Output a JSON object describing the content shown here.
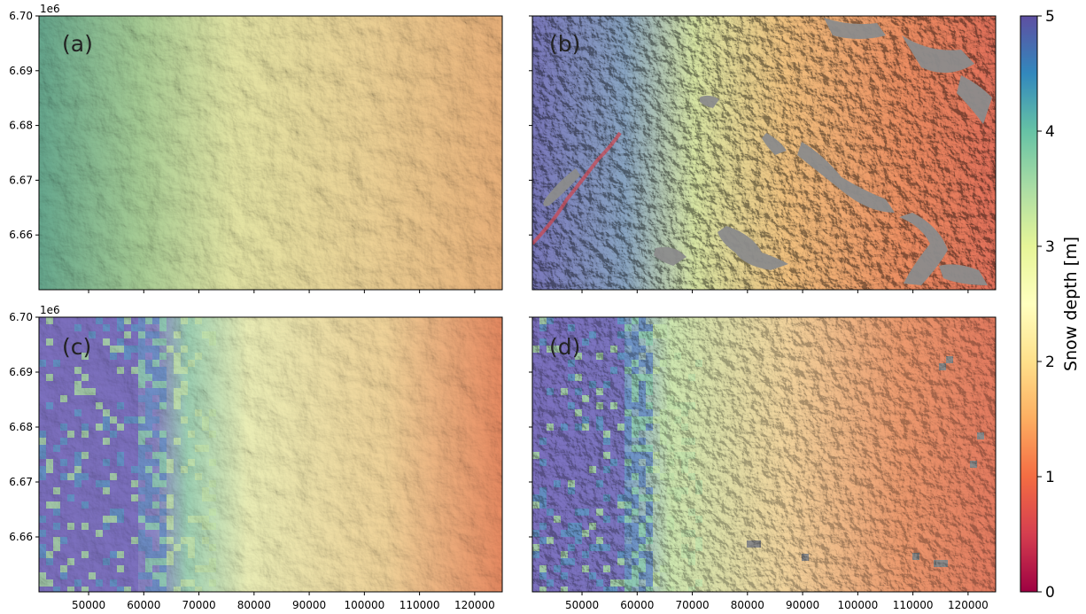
{
  "figure": {
    "panels": [
      {
        "id": "a",
        "label": "(a)",
        "field": "smooth"
      },
      {
        "id": "b",
        "label": "(b)",
        "field": "fine"
      },
      {
        "id": "c",
        "label": "(c)",
        "field": "coarse-grid"
      },
      {
        "id": "d",
        "label": "(d)",
        "field": "fine-grid"
      }
    ],
    "x_ticks": [
      "50000",
      "60000",
      "70000",
      "80000",
      "90000",
      "100000",
      "110000",
      "120000"
    ],
    "y_ticks": [
      "6.66",
      "6.67",
      "6.68",
      "6.69",
      "6.70"
    ],
    "y_offset_label": "1e6",
    "colorbar": {
      "label": "Snow depth [m]",
      "ticks": [
        "0",
        "1",
        "2",
        "3",
        "4",
        "5"
      ],
      "colormap": "Spectral",
      "min": 0,
      "max": 5,
      "colors": [
        "#9e0142",
        "#d53e4f",
        "#f46d43",
        "#fdae61",
        "#fee08b",
        "#ffffbf",
        "#e6f598",
        "#abdda4",
        "#66c2a5",
        "#3288bd",
        "#5e4fa2"
      ]
    },
    "no_data_color": "#8c8c8c"
  },
  "chart_data": [
    {
      "type": "heatmap",
      "title": "",
      "panel": "(a)",
      "xlabel": "",
      "ylabel": "",
      "xlim": [
        41000,
        125000
      ],
      "ylim": [
        6650000,
        6700000
      ]
    },
    {
      "type": "heatmap",
      "title": "",
      "panel": "(b)",
      "xlabel": "",
      "ylabel": "",
      "xlim": [
        41000,
        125000
      ],
      "ylim": [
        6650000,
        6700000
      ]
    },
    {
      "type": "heatmap",
      "title": "",
      "panel": "(c)",
      "xlabel": "",
      "ylabel": "",
      "xlim": [
        41000,
        125000
      ],
      "ylim": [
        6650000,
        6700000
      ]
    },
    {
      "type": "heatmap",
      "title": "",
      "panel": "(d)",
      "xlabel": "",
      "ylabel": "",
      "xlim": [
        41000,
        125000
      ],
      "ylim": [
        6650000,
        6700000
      ]
    }
  ]
}
